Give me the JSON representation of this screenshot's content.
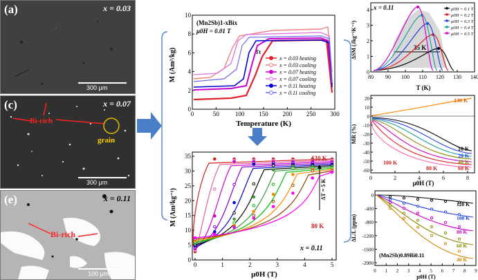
{
  "sem_images": [
    {
      "label": "(a)",
      "x_label": "x = 0.03",
      "scale": "300 μm",
      "tone": "dark"
    },
    {
      "label": "(c)",
      "x_label": "x = 0.07",
      "scale": "300 μm",
      "tone": "dark",
      "annotations": [
        "Bi-rich",
        "grain"
      ]
    },
    {
      "label": "(e)",
      "x_label": "x = 0.11",
      "scale": "100 μm",
      "tone": "light",
      "annotations": [
        "Bi-rich"
      ]
    }
  ],
  "mt_plot": {
    "formula": "(Mn2Sb)1-xBix",
    "field": "μ0H = 0.01 T",
    "ylabel": "M (Am²/kg)",
    "xlabel": "Temperature (K)",
    "xticks": [
      "0",
      "50",
      "100",
      "150",
      "200",
      "250",
      "300"
    ],
    "yticks": [
      "0",
      "2",
      "4",
      "6",
      "8",
      "10"
    ],
    "tt_label": "Tt",
    "legend": [
      {
        "text": "x = 0.03 heating",
        "color": "#e0202a",
        "marker": "square-filled"
      },
      {
        "text": "x = 0.03 cooling",
        "color": "#f08080",
        "marker": "circle-open"
      },
      {
        "text": "x = 0.07 heating",
        "color": "#cc00cc",
        "marker": "triangle-filled"
      },
      {
        "text": "x = 0.07 cooling",
        "color": "#e070e0",
        "marker": "triangle-open"
      },
      {
        "text": "x = 0.11 heating",
        "color": "#0000cc",
        "marker": "diamond-filled"
      },
      {
        "text": "x = 0.11 cooling",
        "color": "#6a6af0",
        "marker": "diamond-open"
      }
    ]
  },
  "mh_plot": {
    "ylabel": "M (Am²kg⁻¹)",
    "xlabel": "μ0H (T)",
    "xticks": [
      "0",
      "1",
      "2",
      "3",
      "4",
      "5"
    ],
    "yticks": [
      "0",
      "5",
      "10",
      "15",
      "20",
      "25",
      "30",
      "35"
    ],
    "top_temp": "130 K",
    "bottom_temp": "80 K",
    "delta_t": "ΔT = 5 K",
    "x_label": "x = 0.11"
  },
  "entropy_plot": {
    "x_label": "x = 0.11",
    "ylabel": "ΔSM (Jkg⁻¹K⁻¹)",
    "xlabel": "T (K)",
    "xticks": [
      "80",
      "90",
      "100",
      "110",
      "120",
      "130",
      "140"
    ],
    "yticks": [
      "0",
      "1",
      "2",
      "3",
      "4"
    ],
    "width_label": "35 K",
    "legend": [
      "μ0H = 0.1 T",
      "μ0H = 0.2 T",
      "μ0H = 0.3 T",
      "μ0H = 0.4 T",
      "μ0H = 0.5 T"
    ]
  },
  "mr_plot": {
    "ylabel": "MR (%)",
    "xlabel": "μ0H (T)",
    "xticks": [
      "0",
      "2",
      "4",
      "6",
      "8"
    ],
    "yticks": [
      "20",
      "10",
      "0",
      "-10",
      "-20",
      "-30",
      "-40",
      "-50",
      "-60"
    ],
    "annotations": [
      "130 K",
      "10 K",
      "20 K",
      "40 K",
      "60 K",
      "80 K",
      "100 K"
    ]
  },
  "ms_plot": {
    "ylabel": "ΔL/L (ppm)",
    "xlabel": "μ0H (T)",
    "xticks": [
      "0",
      "1",
      "2",
      "3",
      "4",
      "5",
      "6",
      "7",
      "8",
      "9"
    ],
    "yticks": [
      "0",
      "-400",
      "-800",
      "-1200",
      "-1600",
      "-2000"
    ],
    "formula": "(Mn2Sb)0.89Bi0.11",
    "annotations": [
      "120 K",
      "100 K",
      "80 K",
      "60 K",
      "40 K"
    ]
  },
  "colors": {
    "arrow": "#4a7ec8",
    "bracket": "#5a8ad0"
  }
}
